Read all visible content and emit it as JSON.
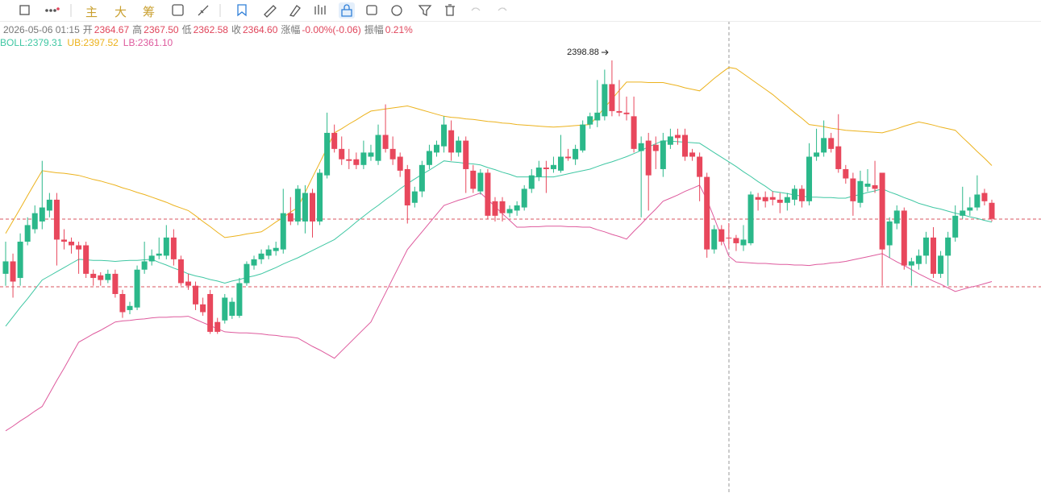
{
  "toolbar": {
    "buttons": [
      "主",
      "大",
      "筹"
    ]
  },
  "info": {
    "time": "2026-05-06 01:15",
    "fields": [
      [
        "开",
        "2364.67"
      ],
      [
        "高",
        "2367.50"
      ],
      [
        "低",
        "2362.58"
      ],
      [
        "收",
        "2364.60"
      ],
      [
        "涨幅",
        "-0.00%(-0.06)"
      ],
      [
        "振幅",
        "0.21%"
      ]
    ]
  },
  "chart_data": {
    "type": "candlestick",
    "ylim": [
      2315.4,
      2400.9
    ],
    "colors": {
      "up": "#2bb88a",
      "down": "#e8475c"
    },
    "candles": [
      [
        2357.7,
        2363.9,
        2355.4,
        2360.1
      ],
      [
        2360.1,
        2361.6,
        2353.1,
        2356.2
      ],
      [
        2356.9,
        2365.5,
        2355.4,
        2363.9
      ],
      [
        2363.9,
        2368.6,
        2363.2,
        2367.1
      ],
      [
        2366.3,
        2370.9,
        2365.5,
        2369.4
      ],
      [
        2367.8,
        2379.5,
        2366.3,
        2370.5
      ],
      [
        2369.9,
        2373.3,
        2368.6,
        2372.0
      ],
      [
        2372.0,
        2373.3,
        2359.3,
        2364.3
      ],
      [
        2364.3,
        2366.3,
        2362.4,
        2363.9
      ],
      [
        2363.9,
        2364.7,
        2361.6,
        2363.2
      ],
      [
        2363.2,
        2363.9,
        2357.7,
        2362.4
      ],
      [
        2363.2,
        2363.9,
        2356.9,
        2357.7
      ],
      [
        2357.7,
        2358.5,
        2355.4,
        2356.9
      ],
      [
        2357.4,
        2358.0,
        2355.4,
        2356.5
      ],
      [
        2356.5,
        2358.5,
        2355.9,
        2357.7
      ],
      [
        2357.7,
        2358.5,
        2353.1,
        2353.8
      ],
      [
        2353.8,
        2354.6,
        2349.2,
        2350.3
      ],
      [
        2350.7,
        2352.3,
        2349.9,
        2351.5
      ],
      [
        2351.2,
        2359.3,
        2350.7,
        2358.5
      ],
      [
        2358.5,
        2363.9,
        2357.7,
        2360.1
      ],
      [
        2360.1,
        2362.4,
        2359.3,
        2361.2
      ],
      [
        2361.2,
        2364.7,
        2360.5,
        2361.6
      ],
      [
        2361.2,
        2367.1,
        2360.5,
        2364.7
      ],
      [
        2364.7,
        2366.3,
        2359.3,
        2360.5
      ],
      [
        2360.5,
        2361.2,
        2355.4,
        2355.9
      ],
      [
        2356.2,
        2357.7,
        2354.6,
        2355.4
      ],
      [
        2355.4,
        2356.2,
        2350.7,
        2351.8
      ],
      [
        2351.8,
        2353.1,
        2349.6,
        2350.3
      ],
      [
        2353.8,
        2354.6,
        2346.1,
        2346.5
      ],
      [
        2348.4,
        2349.2,
        2346.1,
        2346.5
      ],
      [
        2348.7,
        2353.8,
        2348.1,
        2353.1
      ],
      [
        2349.6,
        2353.1,
        2349.0,
        2352.3
      ],
      [
        2349.6,
        2356.9,
        2349.2,
        2355.9
      ],
      [
        2355.9,
        2360.1,
        2355.4,
        2359.6
      ],
      [
        2359.3,
        2361.2,
        2358.5,
        2360.5
      ],
      [
        2360.5,
        2362.4,
        2359.6,
        2361.6
      ],
      [
        2361.2,
        2363.2,
        2360.5,
        2362.4
      ],
      [
        2362.1,
        2363.9,
        2361.2,
        2362.7
      ],
      [
        2362.4,
        2374.1,
        2361.6,
        2369.4
      ],
      [
        2369.4,
        2372.5,
        2367.1,
        2367.8
      ],
      [
        2367.8,
        2374.8,
        2367.1,
        2374.1
      ],
      [
        2367.8,
        2374.8,
        2365.5,
        2373.3
      ],
      [
        2373.3,
        2374.1,
        2364.7,
        2367.8
      ],
      [
        2367.8,
        2377.9,
        2367.1,
        2377.2
      ],
      [
        2376.7,
        2388.8,
        2376.1,
        2384.9
      ],
      [
        2384.9,
        2386.5,
        2381.1,
        2381.8
      ],
      [
        2381.8,
        2384.2,
        2378.7,
        2379.8
      ],
      [
        2379.8,
        2381.8,
        2377.9,
        2379.5
      ],
      [
        2379.8,
        2381.1,
        2377.9,
        2378.7
      ],
      [
        2378.7,
        2383.4,
        2377.9,
        2381.1
      ],
      [
        2380.3,
        2382.6,
        2379.5,
        2381.1
      ],
      [
        2379.5,
        2386.5,
        2378.7,
        2384.5
      ],
      [
        2384.5,
        2390.4,
        2381.1,
        2381.8
      ],
      [
        2381.8,
        2384.2,
        2378.7,
        2379.8
      ],
      [
        2380.3,
        2381.1,
        2376.4,
        2377.6
      ],
      [
        2377.9,
        2378.7,
        2367.4,
        2370.9
      ],
      [
        2371.4,
        2374.5,
        2370.5,
        2373.6
      ],
      [
        2373.6,
        2379.5,
        2372.5,
        2378.7
      ],
      [
        2378.7,
        2382.6,
        2377.9,
        2381.4
      ],
      [
        2381.1,
        2383.4,
        2380.3,
        2382.6
      ],
      [
        2382.3,
        2388.1,
        2381.1,
        2386.5
      ],
      [
        2385.4,
        2387.3,
        2379.5,
        2381.1
      ],
      [
        2381.1,
        2384.2,
        2380.3,
        2383.4
      ],
      [
        2383.4,
        2384.2,
        2373.3,
        2377.9
      ],
      [
        2377.6,
        2378.7,
        2373.3,
        2374.1
      ],
      [
        2373.6,
        2377.9,
        2373.0,
        2377.2
      ],
      [
        2377.2,
        2377.9,
        2368.3,
        2368.9
      ],
      [
        2371.7,
        2372.5,
        2367.8,
        2368.9
      ],
      [
        2371.7,
        2372.5,
        2367.8,
        2369.4
      ],
      [
        2369.4,
        2370.9,
        2368.6,
        2370.2
      ],
      [
        2369.9,
        2371.7,
        2368.9,
        2370.9
      ],
      [
        2370.5,
        2374.8,
        2369.9,
        2374.1
      ],
      [
        2374.1,
        2377.9,
        2373.3,
        2376.7
      ],
      [
        2376.4,
        2379.5,
        2375.6,
        2378.2
      ],
      [
        2378.2,
        2379.5,
        2373.3,
        2377.9
      ],
      [
        2377.9,
        2380.3,
        2377.2,
        2378.7
      ],
      [
        2377.6,
        2384.5,
        2377.2,
        2380.3
      ],
      [
        2380.3,
        2381.8,
        2379.5,
        2380.0
      ],
      [
        2379.8,
        2382.6,
        2378.7,
        2381.8
      ],
      [
        2381.5,
        2387.3,
        2381.1,
        2386.5
      ],
      [
        2386.5,
        2388.8,
        2385.7,
        2388.1
      ],
      [
        2387.3,
        2395.1,
        2386.0,
        2388.8
      ],
      [
        2388.1,
        2397.1,
        2387.3,
        2394.3
      ],
      [
        2394.3,
        2398.88,
        2388.1,
        2389.1
      ],
      [
        2389.1,
        2395.1,
        2388.1,
        2388.8
      ],
      [
        2388.8,
        2391.9,
        2387.3,
        2388.5
      ],
      [
        2388.1,
        2391.9,
        2381.1,
        2381.8
      ],
      [
        2381.4,
        2384.2,
        2368.6,
        2382.9
      ],
      [
        2383.4,
        2384.9,
        2369.9,
        2376.7
      ],
      [
        2382.6,
        2384.2,
        2377.9,
        2381.4
      ],
      [
        2377.9,
        2384.9,
        2376.4,
        2383.4
      ],
      [
        2382.6,
        2385.7,
        2381.8,
        2384.2
      ],
      [
        2384.5,
        2385.7,
        2382.6,
        2383.9
      ],
      [
        2384.5,
        2385.7,
        2379.5,
        2380.3
      ],
      [
        2381.1,
        2381.8,
        2379.5,
        2380.3
      ],
      [
        2380.3,
        2381.1,
        2371.7,
        2376.4
      ],
      [
        2376.4,
        2377.2,
        2360.8,
        2362.4
      ],
      [
        2362.4,
        2367.1,
        2361.6,
        2366.3
      ],
      [
        2366.3,
        2367.1,
        2363.2,
        2363.9
      ],
      [
        2364.67,
        2367.5,
        2362.58,
        2364.6
      ],
      [
        2364.6,
        2365.2,
        2362.1,
        2363.6
      ],
      [
        2363.2,
        2367.1,
        2362.1,
        2364.3
      ],
      [
        2363.6,
        2373.6,
        2363.2,
        2373.0
      ],
      [
        2372.5,
        2373.3,
        2369.9,
        2372.0
      ],
      [
        2372.5,
        2373.6,
        2370.5,
        2371.7
      ],
      [
        2372.5,
        2373.6,
        2370.9,
        2372.0
      ],
      [
        2372.0,
        2373.3,
        2369.4,
        2371.4
      ],
      [
        2371.4,
        2373.3,
        2369.9,
        2372.5
      ],
      [
        2372.0,
        2374.8,
        2370.9,
        2374.1
      ],
      [
        2374.1,
        2374.8,
        2370.5,
        2371.7
      ],
      [
        2371.7,
        2382.9,
        2370.9,
        2380.3
      ],
      [
        2380.3,
        2385.7,
        2379.5,
        2381.1
      ],
      [
        2381.1,
        2387.3,
        2380.3,
        2383.9
      ],
      [
        2383.9,
        2384.9,
        2381.1,
        2381.8
      ],
      [
        2382.3,
        2388.5,
        2377.2,
        2377.9
      ],
      [
        2377.9,
        2378.7,
        2375.1,
        2376.1
      ],
      [
        2376.1,
        2377.2,
        2368.9,
        2371.7
      ],
      [
        2371.4,
        2377.6,
        2370.5,
        2375.6
      ],
      [
        2374.5,
        2377.9,
        2373.6,
        2375.1
      ],
      [
        2374.8,
        2379.5,
        2373.3,
        2374.1
      ],
      [
        2377.2,
        2377.2,
        2355.4,
        2362.4
      ],
      [
        2363.2,
        2368.6,
        2360.8,
        2367.8
      ],
      [
        2367.4,
        2370.9,
        2366.3,
        2369.9
      ],
      [
        2369.9,
        2370.5,
        2358.5,
        2359.3
      ],
      [
        2359.3,
        2360.8,
        2355.4,
        2360.1
      ],
      [
        2359.6,
        2362.4,
        2358.5,
        2361.2
      ],
      [
        2361.2,
        2365.8,
        2359.6,
        2364.7
      ],
      [
        2364.7,
        2366.7,
        2356.9,
        2357.7
      ],
      [
        2357.7,
        2362.1,
        2356.9,
        2361.2
      ],
      [
        2361.2,
        2365.8,
        2355.4,
        2364.7
      ],
      [
        2364.7,
        2370.9,
        2363.9,
        2368.9
      ],
      [
        2368.9,
        2374.5,
        2368.3,
        2369.9
      ],
      [
        2369.9,
        2372.5,
        2368.9,
        2370.5
      ],
      [
        2370.5,
        2376.7,
        2369.9,
        2373.0
      ],
      [
        2373.3,
        2374.1,
        2370.9,
        2371.7
      ],
      [
        2371.4,
        2372.0,
        2367.8,
        2368.3
      ]
    ],
    "series": [
      {
        "name": "BOLL:2379.31",
        "color": "#3fc7a3",
        "values": [
          2347.6,
          2349.4,
          2351.2,
          2352.9,
          2354.7,
          2356.5,
          2357.3,
          2358.1,
          2358.9,
          2359.7,
          2360.5,
          2360.4,
          2360.3,
          2360.3,
          2360.2,
          2360.1,
          2360.2,
          2360.3,
          2360.3,
          2360.4,
          2360.5,
          2359.9,
          2359.4,
          2358.8,
          2358.3,
          2357.7,
          2357.3,
          2357.0,
          2356.6,
          2356.3,
          2355.9,
          2356.3,
          2356.6,
          2357.0,
          2357.3,
          2357.7,
          2358.3,
          2358.9,
          2359.6,
          2360.2,
          2360.8,
          2361.5,
          2362.2,
          2362.9,
          2363.6,
          2364.3,
          2365.4,
          2366.5,
          2367.7,
          2368.8,
          2369.9,
          2370.9,
          2372.0,
          2373.0,
          2374.1,
          2375.1,
          2376.0,
          2376.9,
          2377.7,
          2378.6,
          2379.5,
          2379.3,
          2379.2,
          2379.0,
          2378.9,
          2378.7,
          2378.2,
          2377.8,
          2377.3,
          2376.9,
          2376.4,
          2376.4,
          2376.4,
          2376.4,
          2376.4,
          2376.4,
          2376.7,
          2377.0,
          2377.3,
          2377.6,
          2377.9,
          2378.4,
          2378.9,
          2379.3,
          2379.8,
          2380.3,
          2380.9,
          2381.5,
          2382.2,
          2382.8,
          2383.4,
          2383.3,
          2383.2,
          2383.1,
          2383.0,
          2382.9,
          2382.0,
          2381.1,
          2380.2,
          2379.31,
          2378.4,
          2377.4,
          2376.5,
          2375.5,
          2374.6,
          2373.6,
          2373.4,
          2373.2,
          2372.9,
          2372.7,
          2372.5,
          2372.5,
          2372.4,
          2372.4,
          2372.3,
          2372.3,
          2372.7,
          2373.0,
          2373.4,
          2373.7,
          2374.1,
          2373.5,
          2373.0,
          2372.4,
          2371.9,
          2371.3,
          2370.9,
          2370.5,
          2370.2,
          2369.8,
          2369.4,
          2369.1,
          2368.7,
          2368.4,
          2368.0,
          2367.7
        ]
      },
      {
        "name": "UB:2397.52",
        "color": "#ecb21c",
        "values": [
          2365.5,
          2367.9,
          2370.3,
          2372.8,
          2375.2,
          2377.6,
          2377.4,
          2377.2,
          2377.1,
          2376.9,
          2376.7,
          2376.3,
          2375.9,
          2375.6,
          2375.2,
          2374.8,
          2374.3,
          2373.9,
          2373.4,
          2373.0,
          2372.5,
          2372.0,
          2371.5,
          2370.9,
          2370.4,
          2369.9,
          2368.9,
          2367.8,
          2366.8,
          2365.7,
          2364.7,
          2364.9,
          2365.1,
          2365.4,
          2365.6,
          2365.8,
          2366.7,
          2367.7,
          2368.6,
          2369.6,
          2370.5,
          2373.4,
          2376.3,
          2379.1,
          2382.0,
          2384.9,
          2385.7,
          2386.6,
          2387.4,
          2388.3,
          2389.1,
          2389.3,
          2389.5,
          2389.7,
          2389.9,
          2390.1,
          2389.7,
          2389.3,
          2388.9,
          2388.5,
          2388.1,
          2387.9,
          2387.8,
          2387.6,
          2387.5,
          2387.3,
          2387.1,
          2387.0,
          2386.8,
          2386.7,
          2386.5,
          2386.4,
          2386.3,
          2386.2,
          2386.1,
          2386.0,
          2386.1,
          2386.2,
          2386.3,
          2386.4,
          2386.5,
          2388.1,
          2389.8,
          2391.4,
          2393.1,
          2394.7,
          2394.7,
          2394.7,
          2394.6,
          2394.6,
          2394.6,
          2394.3,
          2394.0,
          2393.6,
          2393.3,
          2393.0,
          2394.2,
          2395.4,
          2396.5,
          2397.52,
          2397.3,
          2396.3,
          2395.3,
          2394.3,
          2393.3,
          2392.3,
          2391.1,
          2390.0,
          2388.8,
          2387.7,
          2386.5,
          2386.3,
          2386.1,
          2385.8,
          2385.6,
          2385.4,
          2385.3,
          2385.2,
          2385.1,
          2385.0,
          2384.9,
          2385.3,
          2385.7,
          2386.2,
          2386.6,
          2387.0,
          2386.7,
          2386.4,
          2386.0,
          2385.7,
          2385.4,
          2384.0,
          2382.7,
          2381.3,
          2380.0,
          2378.6
        ]
      },
      {
        "name": "LB:2361.10",
        "color": "#de5a9d",
        "values": [
          2327.4,
          2328.3,
          2329.3,
          2330.2,
          2331.2,
          2332.1,
          2334.6,
          2337.1,
          2339.5,
          2342.0,
          2344.5,
          2345.3,
          2346.1,
          2346.8,
          2347.6,
          2348.4,
          2348.6,
          2348.7,
          2348.9,
          2349.0,
          2349.2,
          2349.3,
          2349.3,
          2349.4,
          2349.4,
          2349.5,
          2348.9,
          2348.3,
          2347.7,
          2347.1,
          2346.5,
          2346.4,
          2346.3,
          2346.3,
          2346.2,
          2346.1,
          2345.9,
          2345.8,
          2345.6,
          2345.5,
          2345.3,
          2344.5,
          2343.7,
          2343.0,
          2342.2,
          2341.4,
          2342.8,
          2344.2,
          2345.6,
          2347.0,
          2348.4,
          2351.2,
          2354.0,
          2356.8,
          2359.6,
          2362.4,
          2364.1,
          2365.8,
          2367.5,
          2369.2,
          2370.9,
          2371.4,
          2371.9,
          2372.3,
          2372.8,
          2373.3,
          2372.0,
          2370.7,
          2369.3,
          2368.0,
          2366.7,
          2366.7,
          2366.8,
          2366.8,
          2366.9,
          2366.9,
          2366.9,
          2366.8,
          2366.8,
          2366.7,
          2366.7,
          2366.2,
          2365.8,
          2365.3,
          2364.9,
          2364.4,
          2365.9,
          2367.3,
          2368.8,
          2370.2,
          2371.7,
          2372.3,
          2372.9,
          2373.6,
          2374.2,
          2374.8,
          2372.0,
          2368.5,
          2364.8,
          2361.1,
          2360.0,
          2359.9,
          2359.8,
          2359.7,
          2359.7,
          2359.6,
          2359.5,
          2359.5,
          2359.4,
          2359.4,
          2359.3,
          2359.5,
          2359.6,
          2359.8,
          2359.9,
          2360.1,
          2360.4,
          2360.7,
          2361.0,
          2361.3,
          2361.6,
          2360.8,
          2360.0,
          2359.3,
          2358.5,
          2357.7,
          2357.0,
          2356.3,
          2355.7,
          2355.0,
          2354.3,
          2354.7,
          2355.1,
          2355.4,
          2355.8,
          2356.2
        ]
      }
    ]
  }
}
